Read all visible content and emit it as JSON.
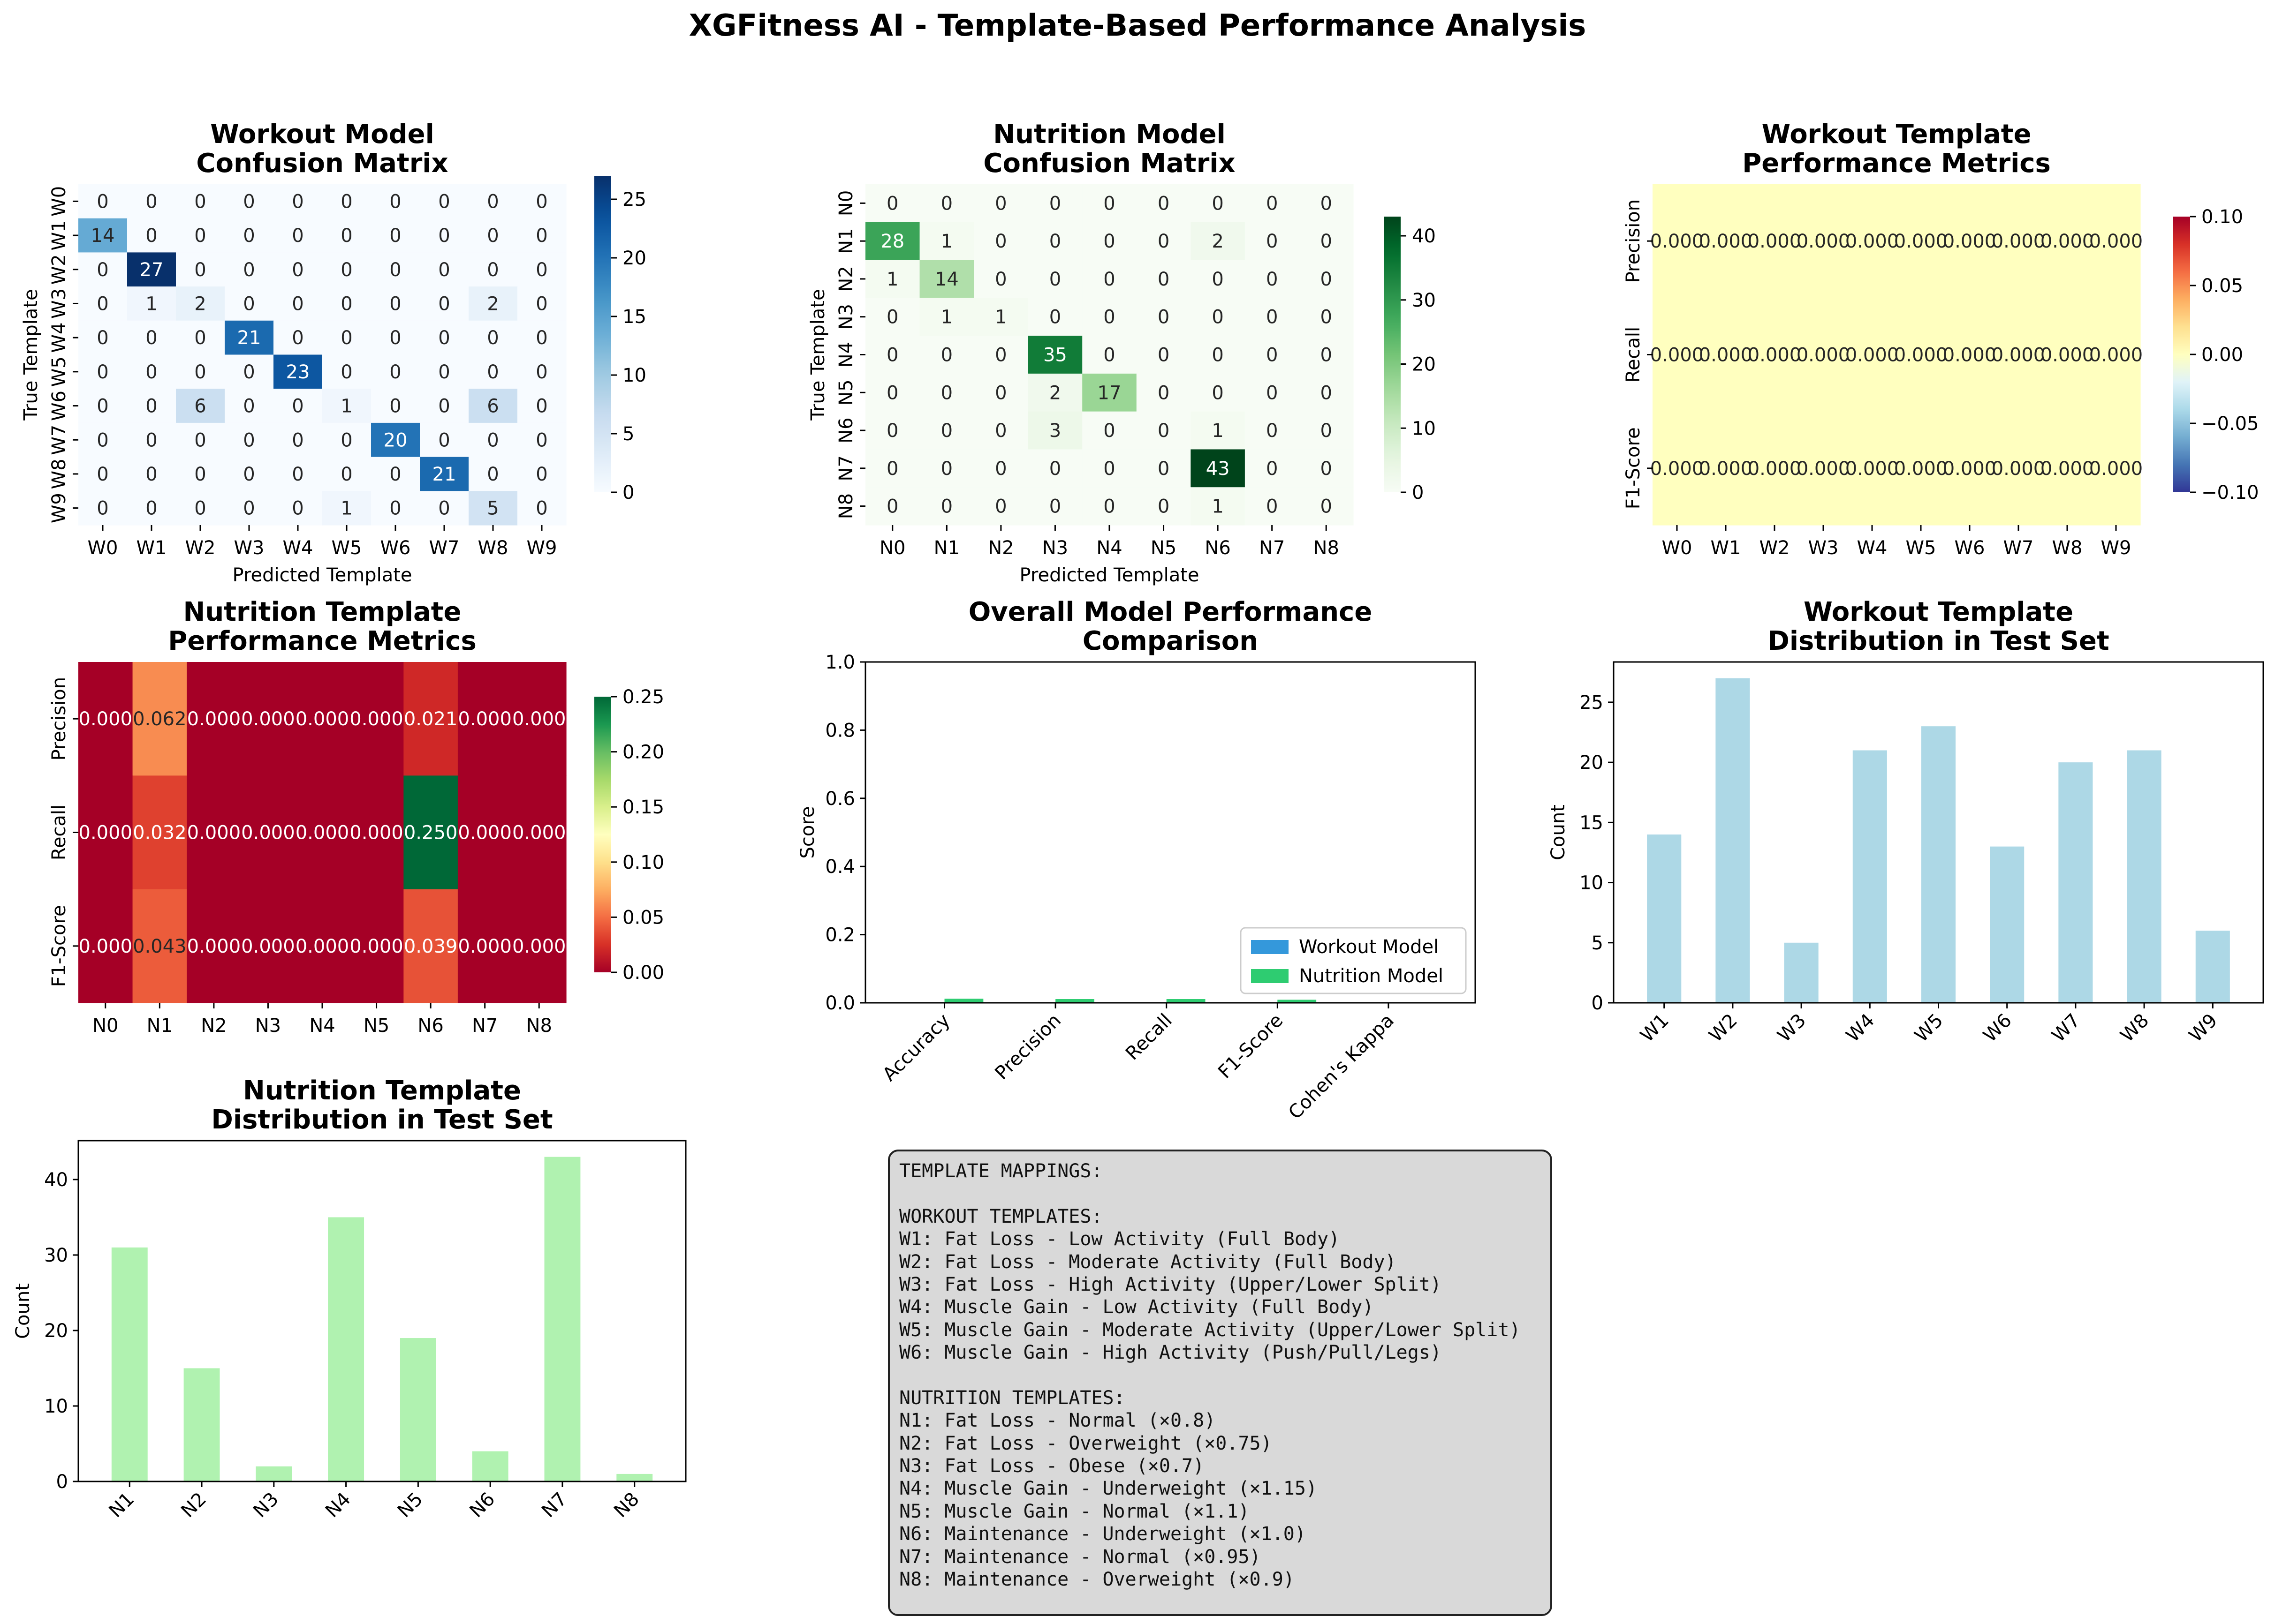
{
  "figure": {
    "title": "XGFitness AI - Template-Based Performance Analysis"
  },
  "chart_data": [
    {
      "id": "workout-confusion",
      "type": "heatmap",
      "title": [
        "Workout Model",
        "Confusion Matrix"
      ],
      "xlabel": "Predicted Template",
      "ylabel": "True Template",
      "x_categories": [
        "W0",
        "W1",
        "W2",
        "W3",
        "W4",
        "W5",
        "W6",
        "W7",
        "W8",
        "W9"
      ],
      "y_categories": [
        "W0",
        "W1",
        "W2",
        "W3",
        "W4",
        "W5",
        "W6",
        "W7",
        "W8",
        "W9"
      ],
      "colormap": "Blues",
      "vmin": 0,
      "vmax": 27,
      "colorbar_ticks": [
        0,
        5,
        10,
        15,
        20,
        25
      ],
      "values": [
        [
          0,
          0,
          0,
          0,
          0,
          0,
          0,
          0,
          0,
          0
        ],
        [
          14,
          0,
          0,
          0,
          0,
          0,
          0,
          0,
          0,
          0
        ],
        [
          0,
          27,
          0,
          0,
          0,
          0,
          0,
          0,
          0,
          0
        ],
        [
          0,
          1,
          2,
          0,
          0,
          0,
          0,
          0,
          2,
          0
        ],
        [
          0,
          0,
          0,
          21,
          0,
          0,
          0,
          0,
          0,
          0
        ],
        [
          0,
          0,
          0,
          0,
          23,
          0,
          0,
          0,
          0,
          0
        ],
        [
          0,
          0,
          6,
          0,
          0,
          1,
          0,
          0,
          6,
          0
        ],
        [
          0,
          0,
          0,
          0,
          0,
          0,
          20,
          0,
          0,
          0
        ],
        [
          0,
          0,
          0,
          0,
          0,
          0,
          0,
          21,
          0,
          0
        ],
        [
          0,
          0,
          0,
          0,
          0,
          1,
          0,
          0,
          5,
          0
        ]
      ],
      "annotations": [
        [
          "0",
          "0",
          "0",
          "0",
          "0",
          "0",
          "0",
          "0",
          "0",
          "0"
        ],
        [
          "14",
          "0",
          "0",
          "0",
          "0",
          "0",
          "0",
          "0",
          "0",
          "0"
        ],
        [
          "0",
          "27",
          "0",
          "0",
          "0",
          "0",
          "0",
          "0",
          "0",
          "0"
        ],
        [
          "0",
          "1",
          "2",
          "0",
          "0",
          "0",
          "0",
          "0",
          "2",
          "0"
        ],
        [
          "0",
          "0",
          "0",
          "21",
          "0",
          "0",
          "0",
          "0",
          "0",
          "0"
        ],
        [
          "0",
          "0",
          "0",
          "0",
          "23",
          "0",
          "0",
          "0",
          "0",
          "0"
        ],
        [
          "0",
          "0",
          "6",
          "0",
          "0",
          "1",
          "0",
          "0",
          "6",
          "0"
        ],
        [
          "0",
          "0",
          "0",
          "0",
          "0",
          "0",
          "20",
          "0",
          "0",
          "0"
        ],
        [
          "0",
          "0",
          "0",
          "0",
          "0",
          "0",
          "0",
          "21",
          "0",
          "0"
        ],
        [
          "0",
          "0",
          "0",
          "0",
          "0",
          "1",
          "0",
          "0",
          "5",
          "0"
        ]
      ]
    },
    {
      "id": "nutrition-confusion",
      "type": "heatmap",
      "title": [
        "Nutrition Model",
        "Confusion Matrix"
      ],
      "xlabel": "Predicted Template",
      "ylabel": "True Template",
      "x_categories": [
        "N0",
        "N1",
        "N2",
        "N3",
        "N4",
        "N5",
        "N6",
        "N7",
        "N8"
      ],
      "y_categories": [
        "N0",
        "N1",
        "N2",
        "N3",
        "N4",
        "N5",
        "N6",
        "N7",
        "N8"
      ],
      "colormap": "Greens",
      "vmin": 0,
      "vmax": 43,
      "colorbar_ticks": [
        0,
        10,
        20,
        30,
        40
      ],
      "values": [
        [
          0,
          0,
          0,
          0,
          0,
          0,
          0,
          0,
          0
        ],
        [
          28,
          1,
          0,
          0,
          0,
          0,
          2,
          0,
          0
        ],
        [
          1,
          14,
          0,
          0,
          0,
          0,
          0,
          0,
          0
        ],
        [
          0,
          1,
          1,
          0,
          0,
          0,
          0,
          0,
          0
        ],
        [
          0,
          0,
          0,
          35,
          0,
          0,
          0,
          0,
          0
        ],
        [
          0,
          0,
          0,
          2,
          17,
          0,
          0,
          0,
          0
        ],
        [
          0,
          0,
          0,
          3,
          0,
          0,
          1,
          0,
          0
        ],
        [
          0,
          0,
          0,
          0,
          0,
          0,
          43,
          0,
          0
        ],
        [
          0,
          0,
          0,
          0,
          0,
          0,
          1,
          0,
          0
        ]
      ],
      "annotations": [
        [
          "0",
          "0",
          "0",
          "0",
          "0",
          "0",
          "0",
          "0",
          "0"
        ],
        [
          "28",
          "1",
          "0",
          "0",
          "0",
          "0",
          "2",
          "0",
          "0"
        ],
        [
          "1",
          "14",
          "0",
          "0",
          "0",
          "0",
          "0",
          "0",
          "0"
        ],
        [
          "0",
          "1",
          "1",
          "0",
          "0",
          "0",
          "0",
          "0",
          "0"
        ],
        [
          "0",
          "0",
          "0",
          "35",
          "0",
          "0",
          "0",
          "0",
          "0"
        ],
        [
          "0",
          "0",
          "0",
          "2",
          "17",
          "0",
          "0",
          "0",
          "0"
        ],
        [
          "0",
          "0",
          "0",
          "3",
          "0",
          "0",
          "1",
          "0",
          "0"
        ],
        [
          "0",
          "0",
          "0",
          "0",
          "0",
          "0",
          "43",
          "0",
          "0"
        ],
        [
          "0",
          "0",
          "0",
          "0",
          "0",
          "0",
          "1",
          "0",
          "0"
        ]
      ]
    },
    {
      "id": "workout-metrics",
      "type": "heatmap",
      "title": [
        "Workout Template",
        "Performance Metrics"
      ],
      "xlabel": "",
      "ylabel": "",
      "x_categories": [
        "W0",
        "W1",
        "W2",
        "W3",
        "W4",
        "W5",
        "W6",
        "W7",
        "W8",
        "W9"
      ],
      "y_categories": [
        "Precision",
        "Recall",
        "F1-Score"
      ],
      "colormap": "RdYlBu_r",
      "vmin": -0.1,
      "vmax": 0.1,
      "colorbar_ticks": [
        -0.1,
        -0.05,
        0,
        0.05,
        0.1
      ],
      "colorbar_labels": [
        "−0.10",
        "−0.05",
        "0.00",
        "0.05",
        "0.10"
      ],
      "values": [
        [
          0,
          0,
          0,
          0,
          0,
          0,
          0,
          0,
          0,
          0
        ],
        [
          0,
          0,
          0,
          0,
          0,
          0,
          0,
          0,
          0,
          0
        ],
        [
          0,
          0,
          0,
          0,
          0,
          0,
          0,
          0,
          0,
          0
        ]
      ],
      "annotations": [
        [
          "0.000",
          "0.000",
          "0.000",
          "0.000",
          "0.000",
          "0.000",
          "0.000",
          "0.000",
          "0.000",
          "0.000"
        ],
        [
          "0.000",
          "0.000",
          "0.000",
          "0.000",
          "0.000",
          "0.000",
          "0.000",
          "0.000",
          "0.000",
          "0.000"
        ],
        [
          "0.000",
          "0.000",
          "0.000",
          "0.000",
          "0.000",
          "0.000",
          "0.000",
          "0.000",
          "0.000",
          "0.000"
        ]
      ]
    },
    {
      "id": "nutrition-metrics",
      "type": "heatmap",
      "title": [
        "Nutrition Template",
        "Performance Metrics"
      ],
      "xlabel": "",
      "ylabel": "",
      "x_categories": [
        "N0",
        "N1",
        "N2",
        "N3",
        "N4",
        "N5",
        "N6",
        "N7",
        "N8"
      ],
      "y_categories": [
        "Precision",
        "Recall",
        "F1-Score"
      ],
      "colormap": "RdYlGn",
      "vmin": 0,
      "vmax": 0.25,
      "colorbar_ticks": [
        0,
        0.05,
        0.1,
        0.15,
        0.2,
        0.25
      ],
      "colorbar_labels": [
        "0.00",
        "0.05",
        "0.10",
        "0.15",
        "0.20",
        "0.25"
      ],
      "values": [
        [
          0,
          0.062,
          0,
          0,
          0,
          0,
          0.021,
          0,
          0
        ],
        [
          0,
          0.032,
          0,
          0,
          0,
          0,
          0.25,
          0,
          0
        ],
        [
          0,
          0.043,
          0,
          0,
          0,
          0,
          0.039,
          0,
          0
        ]
      ],
      "annotations": [
        [
          "0.000",
          "0.062",
          "0.000",
          "0.000",
          "0.000",
          "0.000",
          "0.021",
          "0.000",
          "0.000"
        ],
        [
          "0.000",
          "0.032",
          "0.000",
          "0.000",
          "0.000",
          "0.000",
          "0.250",
          "0.000",
          "0.000"
        ],
        [
          "0.000",
          "0.043",
          "0.000",
          "0.000",
          "0.000",
          "0.000",
          "0.039",
          "0.000",
          "0.000"
        ]
      ]
    },
    {
      "id": "overall-performance",
      "type": "bar",
      "title": [
        "Overall Model Performance",
        "Comparison"
      ],
      "xlabel": "",
      "ylabel": "Score",
      "categories": [
        "Accuracy",
        "Precision",
        "Recall",
        "F1-Score",
        "Cohen's Kappa"
      ],
      "ylim": [
        0,
        1
      ],
      "yticks": [
        0,
        0.2,
        0.4,
        0.6,
        0.8,
        1.0
      ],
      "ytick_labels": [
        "0.0",
        "0.2",
        "0.4",
        "0.6",
        "0.8",
        "1.0"
      ],
      "legend_position": "lower-right",
      "series": [
        {
          "name": "Workout Model",
          "color": "#3498db",
          "values": [
            0,
            0,
            0,
            0,
            0
          ]
        },
        {
          "name": "Nutrition Model",
          "color": "#2ecc71",
          "values": [
            0.012,
            0.011,
            0.011,
            0.009,
            0
          ]
        }
      ]
    },
    {
      "id": "workout-distribution",
      "type": "bar",
      "title": [
        "Workout Template",
        "Distribution in Test Set"
      ],
      "xlabel": "",
      "ylabel": "Count",
      "categories": [
        "W1",
        "W2",
        "W3",
        "W4",
        "W5",
        "W6",
        "W7",
        "W8",
        "W9"
      ],
      "values": [
        14,
        27,
        5,
        21,
        23,
        13,
        20,
        21,
        6
      ],
      "color": "#add8e6",
      "ylim": [
        0,
        28.35
      ],
      "yticks": [
        0,
        5,
        10,
        15,
        20,
        25
      ]
    },
    {
      "id": "nutrition-distribution",
      "type": "bar",
      "title": [
        "Nutrition Template",
        "Distribution in Test Set"
      ],
      "xlabel": "",
      "ylabel": "Count",
      "categories": [
        "N1",
        "N2",
        "N3",
        "N4",
        "N5",
        "N6",
        "N7",
        "N8"
      ],
      "values": [
        31,
        15,
        2,
        35,
        19,
        4,
        43,
        1
      ],
      "color": "#b0f2b0",
      "ylim": [
        0,
        45.15
      ],
      "yticks": [
        0,
        10,
        20,
        30,
        40
      ]
    }
  ],
  "template_mappings": {
    "lines": [
      "TEMPLATE MAPPINGS:",
      "",
      "WORKOUT TEMPLATES:",
      "W1: Fat Loss - Low Activity (Full Body)",
      "W2: Fat Loss - Moderate Activity (Full Body)",
      "W3: Fat Loss - High Activity (Upper/Lower Split)",
      "W4: Muscle Gain - Low Activity (Full Body)",
      "W5: Muscle Gain - Moderate Activity (Upper/Lower Split)",
      "W6: Muscle Gain - High Activity (Push/Pull/Legs)",
      "",
      "NUTRITION TEMPLATES:",
      "N1: Fat Loss - Normal (×0.8)",
      "N2: Fat Loss - Overweight (×0.75)",
      "N3: Fat Loss - Obese (×0.7)",
      "N4: Muscle Gain - Underweight (×1.15)",
      "N5: Muscle Gain - Normal (×1.1)",
      "N6: Maintenance - Underweight (×1.0)",
      "N7: Maintenance - Normal (×0.95)",
      "N8: Maintenance - Overweight (×0.9)"
    ]
  }
}
